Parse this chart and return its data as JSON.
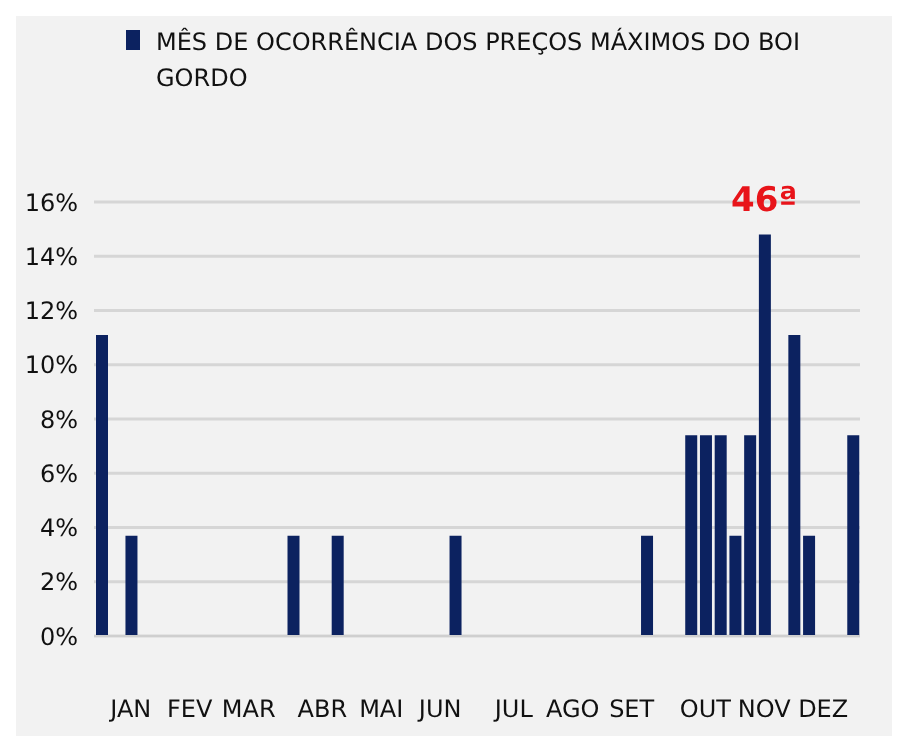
{
  "chart_data": {
    "type": "bar",
    "categories": [
      null,
      null,
      "JAN",
      null,
      null,
      null,
      "FEV",
      null,
      null,
      null,
      "MAR",
      null,
      null,
      null,
      null,
      "ABR",
      null,
      null,
      null,
      "MAI",
      null,
      null,
      null,
      "JUN",
      null,
      null,
      null,
      null,
      "JUL",
      null,
      null,
      null,
      "AGO",
      null,
      null,
      null,
      "SET",
      null,
      null,
      null,
      null,
      "OUT",
      null,
      null,
      null,
      "NOV",
      null,
      null,
      null,
      "DEZ",
      null,
      null
    ],
    "series": [
      {
        "name": "MÊS DE OCORRÊNCIA DOS PREÇOS MÁXIMOS DO BOI GORDO",
        "color": "#0c2260",
        "values": [
          11.1,
          null,
          3.7,
          null,
          null,
          null,
          null,
          null,
          null,
          null,
          null,
          null,
          null,
          3.7,
          null,
          null,
          3.7,
          null,
          null,
          null,
          null,
          null,
          null,
          null,
          3.7,
          null,
          null,
          null,
          null,
          null,
          null,
          null,
          null,
          null,
          null,
          null,
          null,
          3.7,
          null,
          null,
          7.4,
          7.4,
          7.4,
          3.7,
          7.4,
          14.8,
          null,
          11.1,
          3.7,
          null,
          null,
          7.4
        ]
      }
    ],
    "ylim": [
      0,
      16
    ],
    "yticks": [
      {
        "value": 0,
        "label": "0%"
      },
      {
        "value": 2,
        "label": "2%"
      },
      {
        "value": 4,
        "label": "4%"
      },
      {
        "value": 6,
        "label": "6%"
      },
      {
        "value": 8,
        "label": "8%"
      },
      {
        "value": 10,
        "label": "10%"
      },
      {
        "value": 12,
        "label": "12%"
      },
      {
        "value": 14,
        "label": "14%"
      },
      {
        "value": 16,
        "label": "16%"
      }
    ],
    "grid": "y",
    "legend": "top",
    "annotations": [
      {
        "text": "46ª",
        "x": "NOV",
        "y": 14.8
      }
    ]
  }
}
